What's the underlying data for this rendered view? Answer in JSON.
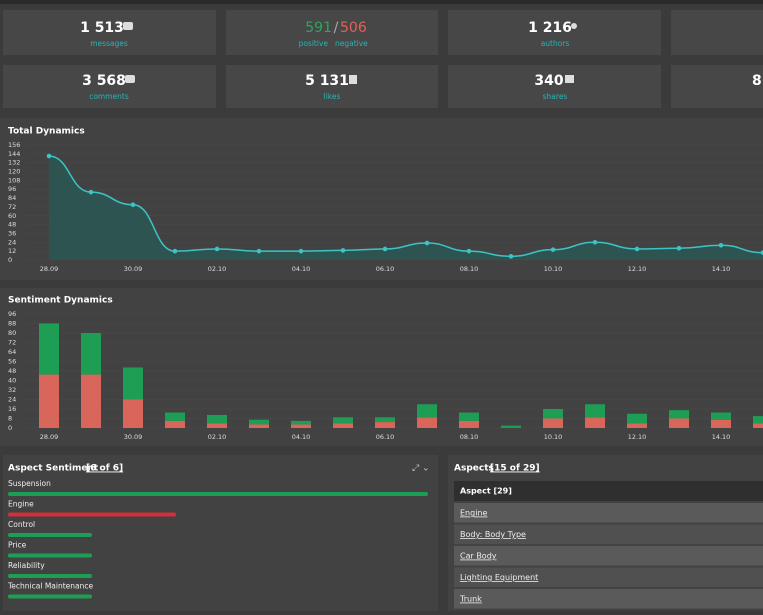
{
  "stats": [
    {
      "value": "1 513",
      "label": "messages"
    },
    {
      "positive": "591",
      "separator": "/",
      "negative": "506",
      "positive_label": "positive",
      "negative_label": "negative"
    },
    {
      "value": "1 216",
      "label": "authors"
    },
    {
      "value": "3 568",
      "label": "comments"
    },
    {
      "value": "5 131",
      "label": "likes"
    },
    {
      "value": "340",
      "label": "shares"
    },
    {
      "value": "8"
    }
  ],
  "chart_data": [
    {
      "type": "line",
      "title": "Total Dynamics",
      "color": "#3cc4c4",
      "fill": "#2c5754",
      "categories": [
        "28.09",
        null,
        "30.09",
        null,
        "02.10",
        null,
        "04.10",
        null,
        "06.10",
        null,
        "08.10",
        null,
        "10.10",
        null,
        "12.10",
        null,
        "14.10",
        null
      ],
      "values": [
        141,
        92,
        75,
        12,
        15,
        12,
        12,
        13,
        15,
        23,
        12,
        5,
        14,
        24,
        15,
        16,
        20,
        10
      ],
      "ylim": [
        0,
        156
      ],
      "yticks": [
        0,
        12,
        24,
        36,
        48,
        60,
        72,
        84,
        96,
        108,
        120,
        132,
        144,
        156
      ]
    },
    {
      "type": "stacked-bar",
      "title": "Sentiment Dynamics",
      "categories": [
        "28.09",
        null,
        "30.09",
        null,
        "02.10",
        null,
        "04.10",
        null,
        "06.10",
        null,
        "08.10",
        null,
        "10.10",
        null,
        "12.10",
        null,
        "14.10",
        null
      ],
      "series": [
        {
          "color": "#d9665a",
          "values": [
            45,
            45,
            24,
            6,
            4,
            3,
            3,
            4,
            5,
            9,
            6,
            0,
            8,
            9,
            4,
            8,
            7,
            4
          ]
        },
        {
          "color": "#1e9e54",
          "values": [
            43,
            35,
            27,
            7,
            7,
            4,
            3,
            5,
            4,
            11,
            7,
            2,
            8,
            11,
            8,
            7,
            6,
            6
          ]
        }
      ],
      "ylim": [
        0,
        96
      ],
      "yticks": [
        0,
        8,
        16,
        24,
        32,
        40,
        48,
        56,
        64,
        72,
        80,
        88,
        96
      ]
    },
    {
      "type": "hbar",
      "title": "Aspect Sentiment",
      "count": "[6 of 6]",
      "categories": [
        "Suspension",
        "Engine",
        "Control",
        "Price",
        "Reliability",
        "Technical Maintenance"
      ],
      "values": [
        100,
        40,
        20,
        20,
        20,
        20
      ],
      "colors": [
        "#1e9e54",
        "#d0303a",
        "#1e9e54",
        "#1e9e54",
        "#1e9e54",
        "#1e9e54"
      ],
      "xlim": [
        0,
        100
      ]
    }
  ],
  "aspects": {
    "title": "Aspects",
    "count": "[15 of 29]",
    "header": "Aspect [29]",
    "rows": [
      "Engine",
      "Body: Body Type",
      "Car Body",
      "Lighting Equipment",
      "Trunk"
    ]
  }
}
